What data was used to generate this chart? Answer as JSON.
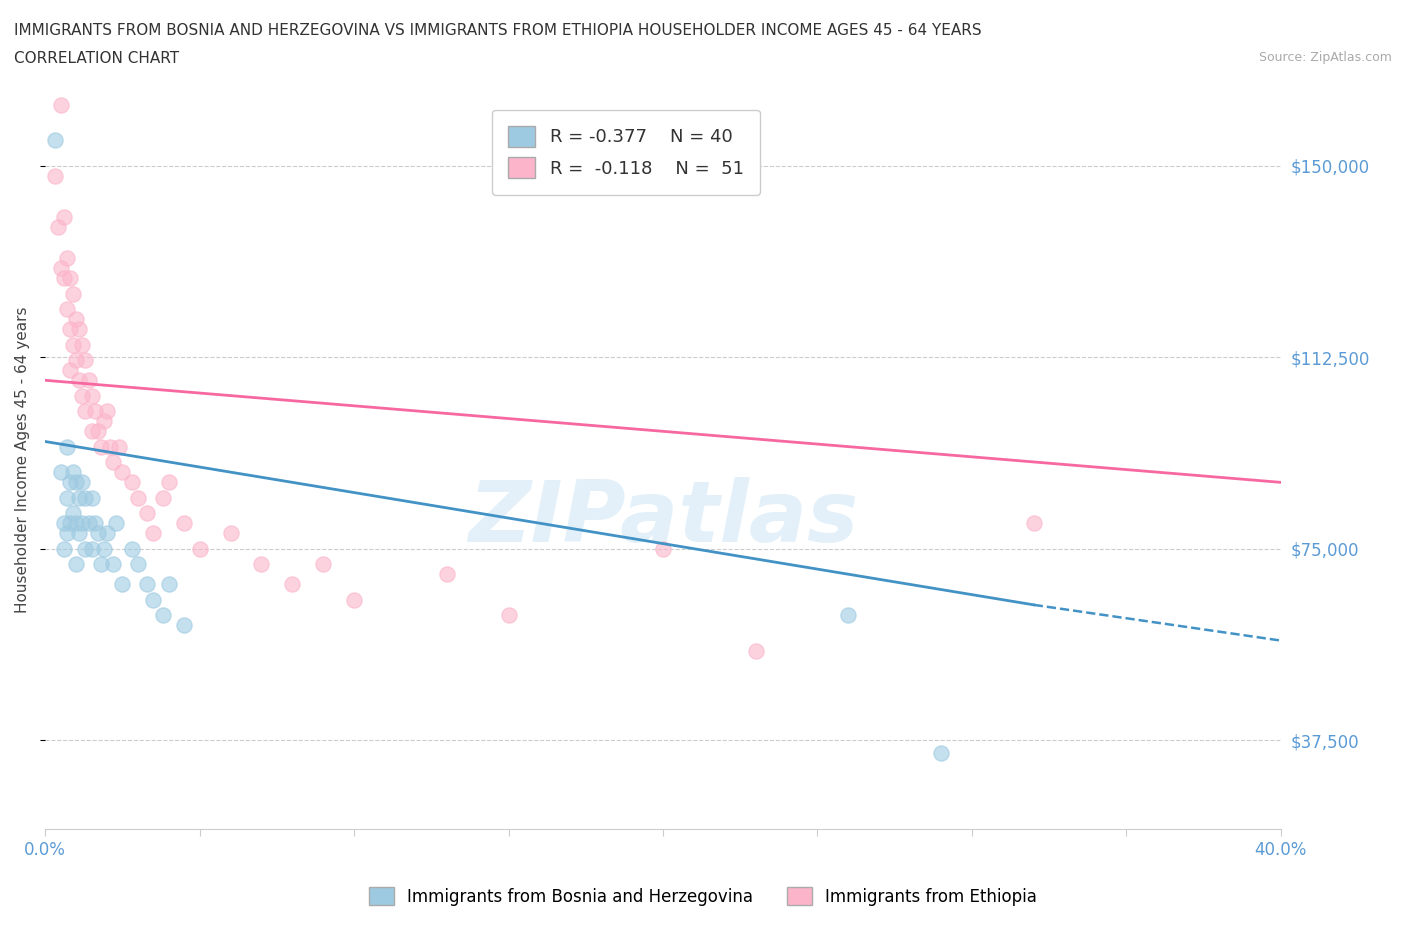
{
  "title_line1": "IMMIGRANTS FROM BOSNIA AND HERZEGOVINA VS IMMIGRANTS FROM ETHIOPIA HOUSEHOLDER INCOME AGES 45 - 64 YEARS",
  "title_line2": "CORRELATION CHART",
  "source_text": "Source: ZipAtlas.com",
  "ylabel": "Householder Income Ages 45 - 64 years",
  "xlim": [
    0.0,
    0.4
  ],
  "ylim": [
    20000,
    165000
  ],
  "yticks": [
    37500,
    75000,
    112500,
    150000
  ],
  "ytick_labels": [
    "$37,500",
    "$75,000",
    "$112,500",
    "$150,000"
  ],
  "xticks": [
    0.0,
    0.05,
    0.1,
    0.15,
    0.2,
    0.25,
    0.3,
    0.35,
    0.4
  ],
  "xtick_labels": [
    "0.0%",
    "",
    "",
    "",
    "",
    "",
    "",
    "",
    "40.0%"
  ],
  "watermark": "ZIPatlas",
  "legend_bosnia_r": "R = -0.377",
  "legend_bosnia_n": "N = 40",
  "legend_ethiopia_r": "R =  -0.118",
  "legend_ethiopia_n": "N =  51",
  "color_bosnia": "#9ecae1",
  "color_ethiopia": "#fbb4ca",
  "color_line_bosnia": "#4292c6",
  "color_line_ethiopia": "#f768a1",
  "bosnia_scatter_x": [
    0.003,
    0.005,
    0.006,
    0.006,
    0.007,
    0.007,
    0.007,
    0.008,
    0.008,
    0.009,
    0.009,
    0.01,
    0.01,
    0.01,
    0.011,
    0.011,
    0.012,
    0.012,
    0.013,
    0.013,
    0.014,
    0.015,
    0.015,
    0.016,
    0.017,
    0.018,
    0.019,
    0.02,
    0.022,
    0.023,
    0.025,
    0.028,
    0.03,
    0.033,
    0.035,
    0.038,
    0.04,
    0.045,
    0.26,
    0.29
  ],
  "bosnia_scatter_y": [
    155000,
    90000,
    80000,
    75000,
    95000,
    85000,
    78000,
    88000,
    80000,
    90000,
    82000,
    88000,
    80000,
    72000,
    85000,
    78000,
    88000,
    80000,
    85000,
    75000,
    80000,
    85000,
    75000,
    80000,
    78000,
    72000,
    75000,
    78000,
    72000,
    80000,
    68000,
    75000,
    72000,
    68000,
    65000,
    62000,
    68000,
    60000,
    62000,
    35000
  ],
  "ethiopia_scatter_x": [
    0.003,
    0.004,
    0.005,
    0.005,
    0.006,
    0.006,
    0.007,
    0.007,
    0.008,
    0.008,
    0.008,
    0.009,
    0.009,
    0.01,
    0.01,
    0.011,
    0.011,
    0.012,
    0.012,
    0.013,
    0.013,
    0.014,
    0.015,
    0.015,
    0.016,
    0.017,
    0.018,
    0.019,
    0.02,
    0.021,
    0.022,
    0.024,
    0.025,
    0.028,
    0.03,
    0.033,
    0.035,
    0.038,
    0.04,
    0.045,
    0.05,
    0.06,
    0.07,
    0.08,
    0.09,
    0.1,
    0.13,
    0.15,
    0.2,
    0.23,
    0.32
  ],
  "ethiopia_scatter_y": [
    148000,
    138000,
    162000,
    130000,
    140000,
    128000,
    132000,
    122000,
    128000,
    118000,
    110000,
    125000,
    115000,
    120000,
    112000,
    118000,
    108000,
    115000,
    105000,
    112000,
    102000,
    108000,
    105000,
    98000,
    102000,
    98000,
    95000,
    100000,
    102000,
    95000,
    92000,
    95000,
    90000,
    88000,
    85000,
    82000,
    78000,
    85000,
    88000,
    80000,
    75000,
    78000,
    72000,
    68000,
    72000,
    65000,
    70000,
    62000,
    75000,
    55000,
    80000
  ],
  "background_color": "#ffffff",
  "grid_color": "#cccccc",
  "title_fontsize": 11,
  "axis_label_fontsize": 11,
  "tick_label_color": "#5b9bd5",
  "bosnia_trend_x0": 0.0,
  "bosnia_trend_y0": 96000,
  "bosnia_trend_x1": 0.32,
  "bosnia_trend_y1": 64000,
  "bosnia_trend_dashed_x0": 0.32,
  "bosnia_trend_dashed_y0": 64000,
  "bosnia_trend_dashed_x1": 0.4,
  "bosnia_trend_dashed_y1": 57000,
  "ethiopia_trend_x0": 0.0,
  "ethiopia_trend_y0": 108000,
  "ethiopia_trend_x1": 0.4,
  "ethiopia_trend_y1": 88000
}
